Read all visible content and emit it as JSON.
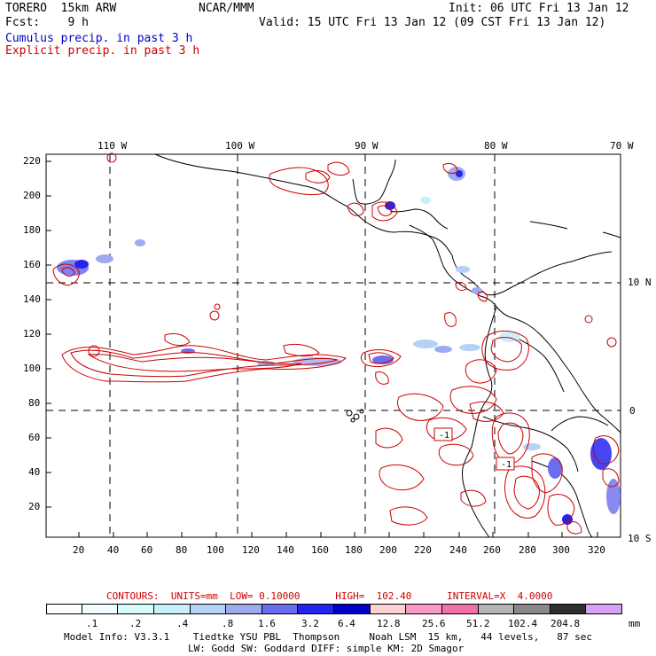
{
  "header": {
    "model": "TORERO  15km ARW",
    "org": "NCAR/MMM",
    "init": "Init: 06 UTC Fri 13 Jan 12",
    "fcst": "Fcst:    9 h",
    "valid": "Valid: 15 UTC Fri 13 Jan 12 (09 CST Fri 13 Jan 12)",
    "legend_cumulus": "Cumulus precip. in past 3 h",
    "legend_explicit": "Explicit precip. in past 3 h"
  },
  "top_lon_labels": [
    "110 W",
    "100 W",
    "90 W",
    "80 W",
    "70 W"
  ],
  "right_lat_labels": [
    "10 N",
    "0",
    "10 S"
  ],
  "left_y_ticks": [
    "220",
    "200",
    "180",
    "160",
    "140",
    "120",
    "100",
    "80",
    "60",
    "40",
    "20"
  ],
  "bottom_x_ticks": [
    "20",
    "40",
    "60",
    "80",
    "100",
    "120",
    "140",
    "160",
    "180",
    "200",
    "220",
    "240",
    "260",
    "280",
    "300",
    "320"
  ],
  "contour_labels": [
    "-1",
    "-1"
  ],
  "contour_info": "CONTOURS:  UNITS=mm  LOW= 0.10000      HIGH=  102.40      INTERVAL=X  4.0000",
  "colorbar": {
    "labels": [
      ".1",
      ".2",
      ".4",
      ".8",
      "1.6",
      "3.2",
      "6.4",
      "12.8",
      "25.6",
      "51.2",
      "102.4",
      "204.8"
    ],
    "unit": "mm",
    "colors": [
      "#ffffff",
      "#f0ffff",
      "#d8fcfc",
      "#c8f0fa",
      "#b4d2f8",
      "#9eaaf0",
      "#6c6cf0",
      "#2424f0",
      "#0000c8",
      "#ffd2d2",
      "#fa98c8",
      "#f070a8",
      "#b4b4b4",
      "#888888",
      "#303030",
      "#d8a0f8"
    ]
  },
  "footer": {
    "line1": "Model Info: V3.3.1    Tiedtke YSU PBL  Thompson     Noah LSM  15 km,   44 levels,   87 sec",
    "line2": "LW: Godd SW: Goddard DIFF: simple KM: 2D Smagor"
  }
}
